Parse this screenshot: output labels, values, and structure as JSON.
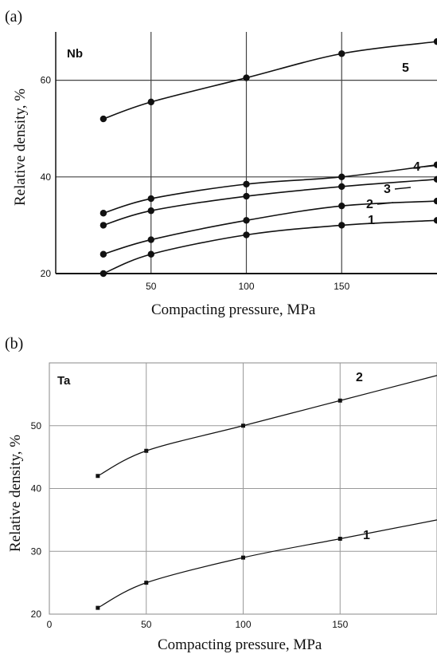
{
  "chart_data": [
    {
      "panel_label": "(a)",
      "element": "Nb",
      "type": "line",
      "xlabel": "Compacting pressure, MPa",
      "ylabel": "Relative density, %",
      "xlim": [
        0,
        200
      ],
      "ylim": [
        20,
        70
      ],
      "xticks": [
        50,
        100,
        150
      ],
      "yticks": [
        20,
        40,
        60
      ],
      "grid": true,
      "series": [
        {
          "name": "1",
          "x": [
            25,
            50,
            100,
            150,
            200
          ],
          "y": [
            20,
            24,
            28,
            30,
            31
          ]
        },
        {
          "name": "2",
          "x": [
            25,
            50,
            100,
            150,
            200
          ],
          "y": [
            24,
            27,
            31,
            34,
            35
          ]
        },
        {
          "name": "3",
          "x": [
            25,
            50,
            100,
            150,
            200
          ],
          "y": [
            30,
            33,
            36,
            38,
            39.5
          ]
        },
        {
          "name": "4",
          "x": [
            25,
            50,
            100,
            150,
            200
          ],
          "y": [
            32.5,
            35.5,
            38.5,
            40,
            42.5
          ]
        },
        {
          "name": "5",
          "x": [
            25,
            50,
            100,
            150,
            200
          ],
          "y": [
            52,
            55.5,
            60.5,
            65.5,
            68
          ]
        }
      ]
    },
    {
      "panel_label": "(b)",
      "element": "Ta",
      "type": "line",
      "xlabel": "Compacting pressure, MPa",
      "ylabel": "Relative density, %",
      "xlim": [
        0,
        200
      ],
      "ylim": [
        20,
        60
      ],
      "xticks": [
        0,
        50,
        100,
        150
      ],
      "yticks": [
        20,
        30,
        40,
        50
      ],
      "grid": true,
      "series": [
        {
          "name": "1",
          "x": [
            25,
            50,
            100,
            150,
            200
          ],
          "y": [
            21,
            25,
            29,
            32,
            35
          ]
        },
        {
          "name": "2",
          "x": [
            25,
            50,
            100,
            150,
            200
          ],
          "y": [
            42,
            46,
            50,
            54,
            58
          ]
        }
      ]
    }
  ]
}
